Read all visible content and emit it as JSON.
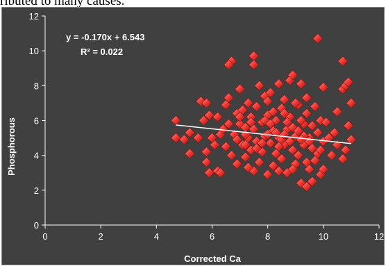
{
  "page": {
    "top_text": "ributed to many causes."
  },
  "chart_data": {
    "type": "scatter",
    "title": "",
    "xlabel": "Corrected Ca",
    "ylabel": "Phosphorous",
    "xlim": [
      0,
      12
    ],
    "ylim": [
      0,
      12
    ],
    "x_ticks": [
      0,
      2,
      4,
      6,
      8,
      10,
      12
    ],
    "y_ticks": [
      0,
      2,
      4,
      6,
      8,
      10,
      12
    ],
    "grid": false,
    "legend": "none",
    "colors": {
      "background": "#404040",
      "marker": "#e8322e",
      "marker_highlight": "#ff8a80",
      "trendline": "#ffffff",
      "text": "#ffffff"
    },
    "annotations": {
      "equation": "y = -0.170x + 6.543",
      "r_squared": "R² = 0.022"
    },
    "trendline": {
      "slope": -0.17,
      "intercept": 6.543,
      "x_range": [
        4.7,
        11.0
      ]
    },
    "series": [
      {
        "marker": "diamond",
        "points": [
          [
            9.8,
            10.7
          ],
          [
            6.7,
            9.4
          ],
          [
            6.6,
            9.2
          ],
          [
            7.5,
            9.7
          ],
          [
            7.5,
            9.2
          ],
          [
            10.7,
            9.4
          ],
          [
            4.7,
            6.0
          ],
          [
            4.7,
            5.0
          ],
          [
            5.0,
            4.9
          ],
          [
            5.2,
            5.3
          ],
          [
            5.2,
            4.1
          ],
          [
            5.5,
            5.0
          ],
          [
            5.6,
            7.1
          ],
          [
            5.8,
            7.0
          ],
          [
            5.7,
            6.0
          ],
          [
            5.8,
            4.2
          ],
          [
            5.8,
            3.6
          ],
          [
            5.9,
            3.0
          ],
          [
            6.1,
            4.6
          ],
          [
            6.2,
            6.2
          ],
          [
            6.2,
            3.1
          ],
          [
            6.3,
            3.0
          ],
          [
            6.3,
            5.2
          ],
          [
            6.5,
            4.5
          ],
          [
            6.5,
            6.9
          ],
          [
            6.6,
            7.3
          ],
          [
            6.6,
            5.8
          ],
          [
            6.7,
            4.0
          ],
          [
            6.8,
            5.2
          ],
          [
            6.9,
            6.4
          ],
          [
            7.0,
            7.8
          ],
          [
            7.0,
            5.8
          ],
          [
            7.1,
            4.6
          ],
          [
            7.1,
            6.6
          ],
          [
            7.2,
            5.6
          ],
          [
            7.2,
            3.9
          ],
          [
            7.3,
            5.0
          ],
          [
            7.3,
            7.0
          ],
          [
            7.4,
            4.3
          ],
          [
            7.4,
            6.2
          ],
          [
            7.5,
            3.1
          ],
          [
            7.5,
            5.5
          ],
          [
            7.6,
            4.8
          ],
          [
            7.6,
            6.8
          ],
          [
            7.7,
            8.0
          ],
          [
            7.7,
            3.6
          ],
          [
            7.8,
            5.9
          ],
          [
            7.8,
            4.2
          ],
          [
            7.9,
            7.4
          ],
          [
            7.9,
            5.1
          ],
          [
            8.0,
            6.3
          ],
          [
            8.0,
            2.9
          ],
          [
            8.1,
            4.7
          ],
          [
            8.1,
            7.6
          ],
          [
            8.2,
            5.4
          ],
          [
            8.2,
            3.4
          ],
          [
            8.3,
            6.0
          ],
          [
            8.3,
            4.1
          ],
          [
            8.4,
            8.1
          ],
          [
            8.4,
            5.0
          ],
          [
            8.5,
            6.7
          ],
          [
            8.5,
            3.8
          ],
          [
            8.6,
            4.6
          ],
          [
            8.6,
            7.2
          ],
          [
            8.7,
            5.5
          ],
          [
            8.7,
            3.0
          ],
          [
            8.8,
            8.3
          ],
          [
            8.8,
            6.2
          ],
          [
            8.9,
            4.3
          ],
          [
            8.9,
            8.6
          ],
          [
            9.0,
            5.1
          ],
          [
            9.0,
            3.5
          ],
          [
            9.1,
            6.9
          ],
          [
            9.1,
            4.0
          ],
          [
            9.2,
            8.1
          ],
          [
            9.2,
            2.4
          ],
          [
            9.3,
            5.8
          ],
          [
            9.3,
            4.6
          ],
          [
            9.4,
            2.2
          ],
          [
            9.4,
            6.4
          ],
          [
            9.5,
            3.2
          ],
          [
            9.5,
            5.0
          ],
          [
            9.6,
            2.5
          ],
          [
            9.6,
            4.4
          ],
          [
            9.7,
            6.8
          ],
          [
            9.7,
            3.7
          ],
          [
            9.8,
            5.3
          ],
          [
            9.8,
            4.1
          ],
          [
            9.9,
            2.9
          ],
          [
            9.9,
            6.0
          ],
          [
            10.0,
            7.9
          ],
          [
            10.0,
            3.2
          ],
          [
            10.0,
            4.8
          ],
          [
            10.4,
            5.3
          ],
          [
            10.5,
            6.5
          ],
          [
            10.5,
            4.6
          ],
          [
            10.7,
            7.8
          ],
          [
            10.7,
            3.8
          ],
          [
            10.8,
            8.0
          ],
          [
            10.8,
            4.3
          ],
          [
            10.9,
            5.7
          ],
          [
            10.9,
            8.2
          ],
          [
            11.0,
            7.0
          ],
          [
            11.0,
            4.9
          ],
          [
            6.9,
            4.9
          ],
          [
            7.2,
            5.2
          ],
          [
            7.6,
            4.4
          ],
          [
            7.9,
            6.0
          ],
          [
            8.1,
            5.8
          ],
          [
            8.3,
            5.3
          ],
          [
            8.5,
            4.9
          ],
          [
            8.7,
            5.9
          ],
          [
            8.9,
            5.6
          ],
          [
            9.1,
            5.4
          ],
          [
            9.3,
            5.1
          ],
          [
            9.5,
            4.8
          ],
          [
            8.2,
            6.5
          ],
          [
            8.6,
            6.4
          ],
          [
            7.4,
            5.9
          ],
          [
            7.8,
            4.7
          ],
          [
            8.0,
            5.2
          ],
          [
            8.4,
            4.5
          ],
          [
            8.8,
            4.8
          ],
          [
            9.2,
            4.9
          ],
          [
            9.6,
            5.7
          ],
          [
            10.2,
            5.0
          ],
          [
            6.4,
            5.5
          ],
          [
            6.9,
            3.5
          ],
          [
            7.3,
            3.3
          ],
          [
            8.4,
            3.1
          ],
          [
            8.9,
            3.2
          ],
          [
            9.4,
            3.6
          ],
          [
            9.0,
            7.0
          ],
          [
            9.4,
            7.3
          ],
          [
            8.0,
            7.1
          ],
          [
            7.2,
            4.6
          ],
          [
            10.3,
            4.0
          ],
          [
            9.9,
            4.3
          ],
          [
            6.0,
            5.0
          ],
          [
            5.9,
            6.3
          ],
          [
            7.0,
            6.2
          ],
          [
            8.6,
            5.2
          ],
          [
            9.2,
            6.0
          ],
          [
            10.1,
            5.9
          ]
        ]
      }
    ]
  }
}
